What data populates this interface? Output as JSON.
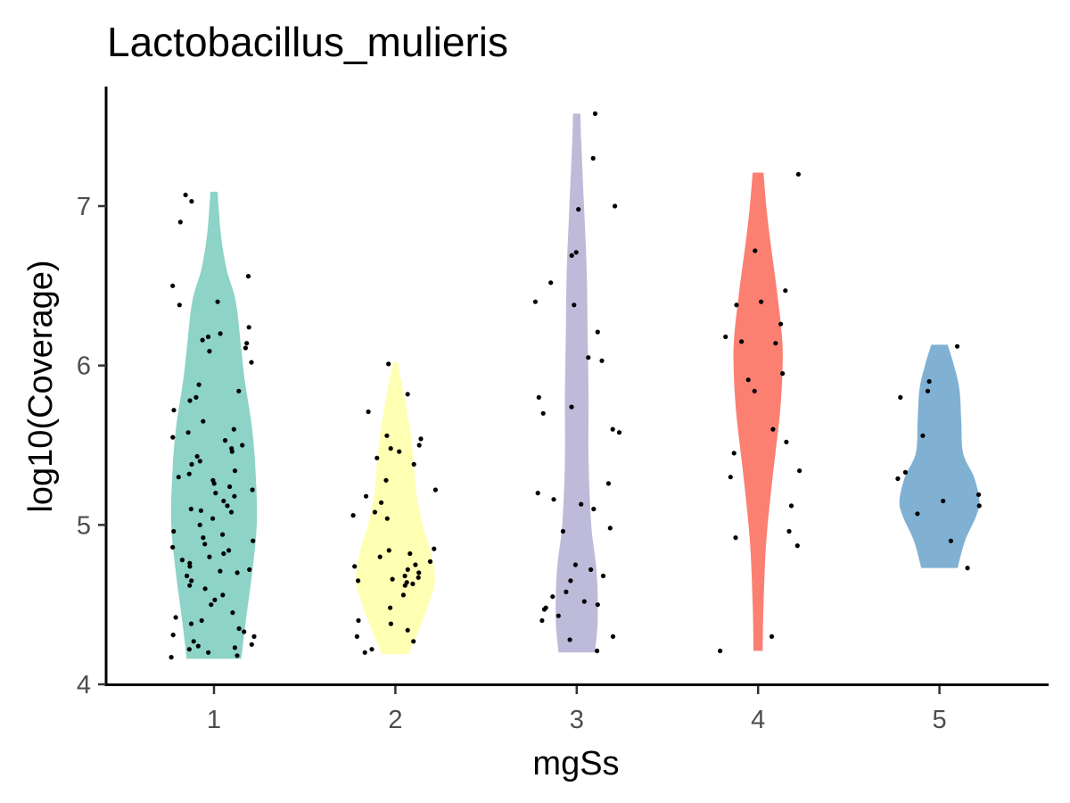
{
  "chart_data": {
    "type": "violin",
    "title": "Lactobacillus_mulieris",
    "xlabel": "mgSs",
    "ylabel": "log10(Coverage)",
    "ylim": [
      4,
      7.75
    ],
    "yticks": [
      4,
      5,
      6,
      7
    ],
    "grid": false,
    "legend": "none",
    "categories": [
      "1",
      "2",
      "3",
      "4",
      "5"
    ],
    "series": [
      {
        "category": "1",
        "color": "#8DD3C7",
        "min": 4.16,
        "max": 7.09,
        "density": [
          [
            4.16,
            0.3
          ],
          [
            4.4,
            0.35
          ],
          [
            4.7,
            0.42
          ],
          [
            5.0,
            0.47
          ],
          [
            5.3,
            0.46
          ],
          [
            5.6,
            0.42
          ],
          [
            5.9,
            0.34
          ],
          [
            6.1,
            0.3
          ],
          [
            6.4,
            0.24
          ],
          [
            6.6,
            0.14
          ],
          [
            6.8,
            0.08
          ],
          [
            7.0,
            0.05
          ],
          [
            7.09,
            0.04
          ]
        ],
        "points": [
          4.17,
          4.18,
          4.2,
          4.22,
          4.23,
          4.24,
          4.25,
          4.27,
          4.3,
          4.31,
          4.33,
          4.35,
          4.38,
          4.4,
          4.42,
          4.45,
          4.5,
          4.53,
          4.56,
          4.6,
          4.62,
          4.65,
          4.68,
          4.7,
          4.71,
          4.72,
          4.74,
          4.76,
          4.78,
          4.8,
          4.82,
          4.84,
          4.86,
          4.88,
          4.9,
          4.92,
          4.94,
          4.96,
          5.0,
          5.04,
          5.08,
          5.09,
          5.1,
          5.12,
          5.15,
          5.18,
          5.2,
          5.22,
          5.24,
          5.26,
          5.28,
          5.3,
          5.32,
          5.34,
          5.38,
          5.4,
          5.43,
          5.46,
          5.48,
          5.5,
          5.53,
          5.55,
          5.58,
          5.6,
          5.65,
          5.72,
          5.78,
          5.8,
          5.84,
          5.88,
          6.02,
          6.09,
          6.11,
          6.14,
          6.16,
          6.18,
          6.2,
          6.24,
          6.38,
          6.4,
          6.5,
          6.56,
          6.9,
          7.03,
          7.07
        ]
      },
      {
        "category": "2",
        "color": "#FFFFB3",
        "min": 4.19,
        "max": 6.02,
        "density": [
          [
            4.19,
            0.15
          ],
          [
            4.4,
            0.3
          ],
          [
            4.6,
            0.42
          ],
          [
            4.7,
            0.43
          ],
          [
            4.85,
            0.38
          ],
          [
            5.0,
            0.3
          ],
          [
            5.2,
            0.23
          ],
          [
            5.4,
            0.2
          ],
          [
            5.6,
            0.16
          ],
          [
            5.8,
            0.1
          ],
          [
            5.95,
            0.05
          ],
          [
            6.02,
            0.03
          ]
        ],
        "points": [
          4.2,
          4.22,
          4.27,
          4.3,
          4.34,
          4.38,
          4.4,
          4.48,
          4.56,
          4.62,
          4.63,
          4.64,
          4.65,
          4.66,
          4.67,
          4.68,
          4.7,
          4.72,
          4.74,
          4.75,
          4.77,
          4.8,
          4.82,
          4.84,
          4.85,
          5.04,
          5.06,
          5.08,
          5.14,
          5.18,
          5.22,
          5.28,
          5.38,
          5.42,
          5.46,
          5.48,
          5.5,
          5.54,
          5.56,
          5.71,
          5.82,
          6.01
        ]
      },
      {
        "category": "3",
        "color": "#BEBADA",
        "min": 4.2,
        "max": 7.58,
        "density": [
          [
            4.2,
            0.2
          ],
          [
            4.4,
            0.23
          ],
          [
            4.7,
            0.22
          ],
          [
            5.0,
            0.16
          ],
          [
            5.4,
            0.13
          ],
          [
            5.8,
            0.13
          ],
          [
            6.2,
            0.12
          ],
          [
            6.6,
            0.11
          ],
          [
            7.0,
            0.08
          ],
          [
            7.4,
            0.05
          ],
          [
            7.58,
            0.04
          ]
        ],
        "points": [
          4.21,
          4.28,
          4.3,
          4.4,
          4.43,
          4.47,
          4.48,
          4.5,
          4.52,
          4.55,
          4.58,
          4.65,
          4.68,
          4.72,
          4.75,
          4.96,
          4.98,
          5.1,
          5.13,
          5.16,
          5.2,
          5.26,
          5.58,
          5.6,
          5.7,
          5.74,
          5.8,
          6.03,
          6.05,
          6.21,
          6.38,
          6.4,
          6.52,
          6.69,
          6.71,
          6.98,
          7.0,
          7.3,
          7.58
        ]
      },
      {
        "category": "4",
        "color": "#FB8072",
        "min": 4.21,
        "max": 7.21,
        "density": [
          [
            4.21,
            0.05
          ],
          [
            4.5,
            0.06
          ],
          [
            4.9,
            0.09
          ],
          [
            5.3,
            0.16
          ],
          [
            5.7,
            0.24
          ],
          [
            6.0,
            0.27
          ],
          [
            6.2,
            0.26
          ],
          [
            6.5,
            0.2
          ],
          [
            6.8,
            0.13
          ],
          [
            7.0,
            0.09
          ],
          [
            7.21,
            0.06
          ]
        ],
        "points": [
          4.21,
          4.3,
          4.87,
          4.92,
          4.96,
          5.12,
          5.3,
          5.34,
          5.45,
          5.52,
          5.6,
          5.84,
          5.91,
          5.95,
          6.14,
          6.15,
          6.18,
          6.26,
          6.38,
          6.4,
          6.47,
          6.72,
          7.2
        ]
      },
      {
        "category": "5",
        "color": "#80B1D3",
        "min": 4.73,
        "max": 6.13,
        "density": [
          [
            4.73,
            0.2
          ],
          [
            4.9,
            0.28
          ],
          [
            5.05,
            0.4
          ],
          [
            5.15,
            0.44
          ],
          [
            5.3,
            0.38
          ],
          [
            5.45,
            0.26
          ],
          [
            5.65,
            0.24
          ],
          [
            5.85,
            0.22
          ],
          [
            6.0,
            0.16
          ],
          [
            6.13,
            0.09
          ]
        ],
        "points": [
          4.73,
          4.9,
          5.07,
          5.12,
          5.15,
          5.19,
          5.29,
          5.33,
          5.56,
          5.8,
          5.84,
          5.9,
          6.12
        ]
      }
    ]
  }
}
